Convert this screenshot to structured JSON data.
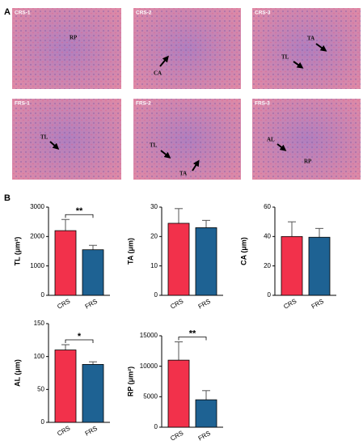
{
  "panel_a": {
    "label": "A",
    "images": [
      {
        "label": "CRS-1",
        "annotations": [
          "RP"
        ]
      },
      {
        "label": "CRS-2",
        "annotations": [
          "CA"
        ]
      },
      {
        "label": "CRS-3",
        "annotations": [
          "TA",
          "TL"
        ]
      },
      {
        "label": "FRS-1",
        "annotations": [
          "TL"
        ]
      },
      {
        "label": "FRS-2",
        "annotations": [
          "TL",
          "TA"
        ]
      },
      {
        "label": "FRS-3",
        "annotations": [
          "AL",
          "RP"
        ]
      }
    ]
  },
  "panel_b": {
    "label": "B"
  },
  "chart_data": [
    {
      "type": "bar",
      "ylabel": "TL (μm²)",
      "categories": [
        "CRS",
        "FRS"
      ],
      "values": [
        2200,
        1550
      ],
      "errors": [
        380,
        150
      ],
      "colors": [
        "#f2314b",
        "#1e6293"
      ],
      "ylim": [
        0,
        3000
      ],
      "yticks": [
        0,
        1000,
        2000,
        3000
      ],
      "significance": "**"
    },
    {
      "type": "bar",
      "ylabel": "TA (μm)",
      "categories": [
        "CRS",
        "FRS"
      ],
      "values": [
        24.5,
        23
      ],
      "errors": [
        5,
        2.5
      ],
      "colors": [
        "#f2314b",
        "#1e6293"
      ],
      "ylim": [
        0,
        30
      ],
      "yticks": [
        0,
        10,
        20,
        30
      ]
    },
    {
      "type": "bar",
      "ylabel": "CA (μm)",
      "categories": [
        "CRS",
        "FRS"
      ],
      "values": [
        40,
        39.5
      ],
      "errors": [
        10,
        6
      ],
      "colors": [
        "#f2314b",
        "#1e6293"
      ],
      "ylim": [
        0,
        60
      ],
      "yticks": [
        0,
        20,
        40,
        60
      ]
    },
    {
      "type": "bar",
      "ylabel": "AL (μm)",
      "categories": [
        "CRS",
        "FRS"
      ],
      "values": [
        110,
        88
      ],
      "errors": [
        8,
        4
      ],
      "colors": [
        "#f2314b",
        "#1e6293"
      ],
      "ylim": [
        0,
        150
      ],
      "yticks": [
        0,
        50,
        100,
        150
      ],
      "significance": "*"
    },
    {
      "type": "bar",
      "ylabel": "RP (μm²)",
      "categories": [
        "CRS",
        "FRS"
      ],
      "values": [
        11000,
        4500
      ],
      "errors": [
        3000,
        1500
      ],
      "colors": [
        "#f2314b",
        "#1e6293"
      ],
      "ylim": [
        0,
        15000
      ],
      "yticks": [
        0,
        5000,
        10000,
        15000
      ],
      "significance": "**"
    }
  ]
}
